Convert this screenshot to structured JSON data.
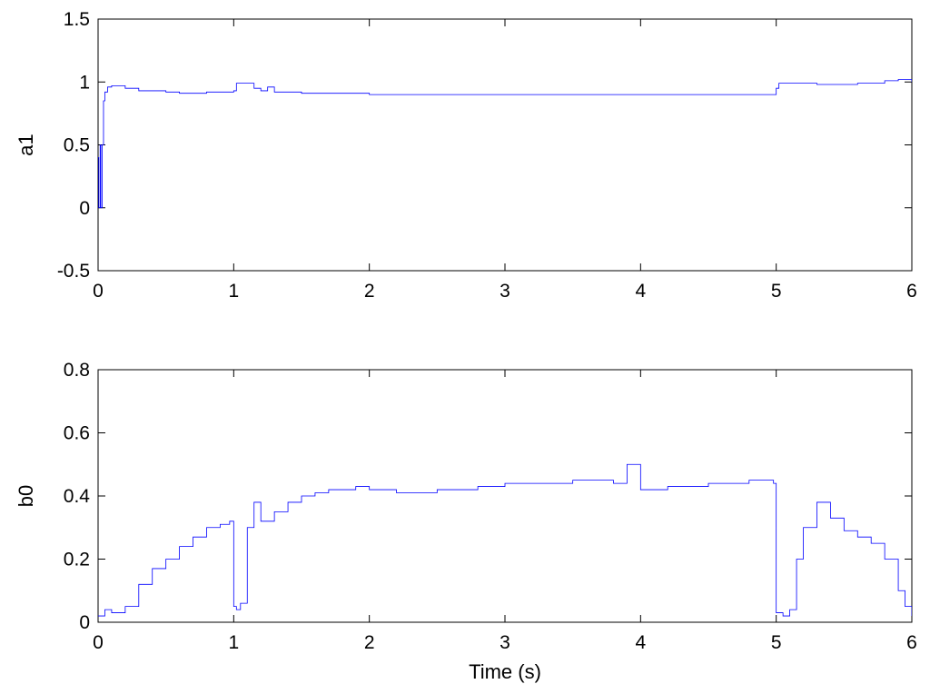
{
  "chart_data": [
    {
      "type": "line",
      "title": "",
      "xlabel": "",
      "ylabel": "a1",
      "xlim": [
        0,
        6
      ],
      "ylim": [
        -0.5,
        1.5
      ],
      "x_ticks": [
        "0",
        "1",
        "2",
        "3",
        "4",
        "5",
        "6"
      ],
      "y_ticks": [
        "-0.5",
        "0",
        "0.5",
        "1",
        "1.5"
      ],
      "grid": false,
      "color": "#0000ff",
      "series": [
        {
          "x": [
            0,
            0.005,
            0.01,
            0.015,
            0.02,
            0.03,
            0.04,
            0.05,
            0.07,
            0.1,
            0.15,
            0.2,
            0.3,
            0.4,
            0.5,
            0.6,
            0.7,
            0.8,
            0.9,
            1.0,
            1.02,
            1.1,
            1.15,
            1.2,
            1.25,
            1.3,
            1.5,
            2.0,
            2.5,
            3.0,
            3.5,
            4.0,
            4.5,
            4.95,
            5.0,
            5.02,
            5.1,
            5.3,
            5.6,
            5.8,
            5.9,
            6.0
          ],
          "values": [
            0.4,
            0.0,
            0.0,
            0.5,
            0.0,
            0.5,
            0.85,
            0.92,
            0.96,
            0.97,
            0.97,
            0.95,
            0.93,
            0.93,
            0.92,
            0.91,
            0.91,
            0.92,
            0.92,
            0.93,
            0.99,
            0.99,
            0.95,
            0.93,
            0.96,
            0.92,
            0.91,
            0.9,
            0.9,
            0.9,
            0.9,
            0.9,
            0.9,
            0.9,
            0.95,
            0.99,
            0.99,
            0.98,
            0.99,
            1.01,
            1.02,
            1.0
          ]
        }
      ]
    },
    {
      "type": "line",
      "title": "",
      "xlabel": "Time (s)",
      "ylabel": "b0",
      "xlim": [
        0,
        6
      ],
      "ylim": [
        0,
        0.8
      ],
      "x_ticks": [
        "0",
        "1",
        "2",
        "3",
        "4",
        "5",
        "6"
      ],
      "y_ticks": [
        "0",
        "0.2",
        "0.4",
        "0.6",
        "0.8"
      ],
      "grid": false,
      "color": "#0000ff",
      "series": [
        {
          "x": [
            0,
            0.05,
            0.1,
            0.2,
            0.3,
            0.4,
            0.5,
            0.6,
            0.7,
            0.8,
            0.9,
            0.97,
            1.0,
            1.02,
            1.05,
            1.1,
            1.15,
            1.2,
            1.3,
            1.4,
            1.5,
            1.6,
            1.7,
            1.8,
            1.9,
            2.0,
            2.2,
            2.5,
            2.8,
            3.0,
            3.2,
            3.5,
            3.8,
            3.9,
            4.0,
            4.2,
            4.5,
            4.8,
            4.95,
            4.98,
            5.0,
            5.05,
            5.1,
            5.15,
            5.2,
            5.3,
            5.4,
            5.5,
            5.6,
            5.7,
            5.8,
            5.9,
            5.95,
            6.0
          ],
          "values": [
            0.02,
            0.04,
            0.03,
            0.05,
            0.12,
            0.17,
            0.2,
            0.24,
            0.27,
            0.3,
            0.31,
            0.32,
            0.05,
            0.04,
            0.06,
            0.3,
            0.38,
            0.32,
            0.35,
            0.38,
            0.4,
            0.41,
            0.42,
            0.42,
            0.43,
            0.42,
            0.41,
            0.42,
            0.43,
            0.44,
            0.44,
            0.45,
            0.44,
            0.5,
            0.42,
            0.43,
            0.44,
            0.45,
            0.45,
            0.44,
            0.03,
            0.02,
            0.04,
            0.2,
            0.3,
            0.38,
            0.33,
            0.29,
            0.27,
            0.25,
            0.2,
            0.1,
            0.05,
            0.02
          ]
        }
      ]
    }
  ]
}
